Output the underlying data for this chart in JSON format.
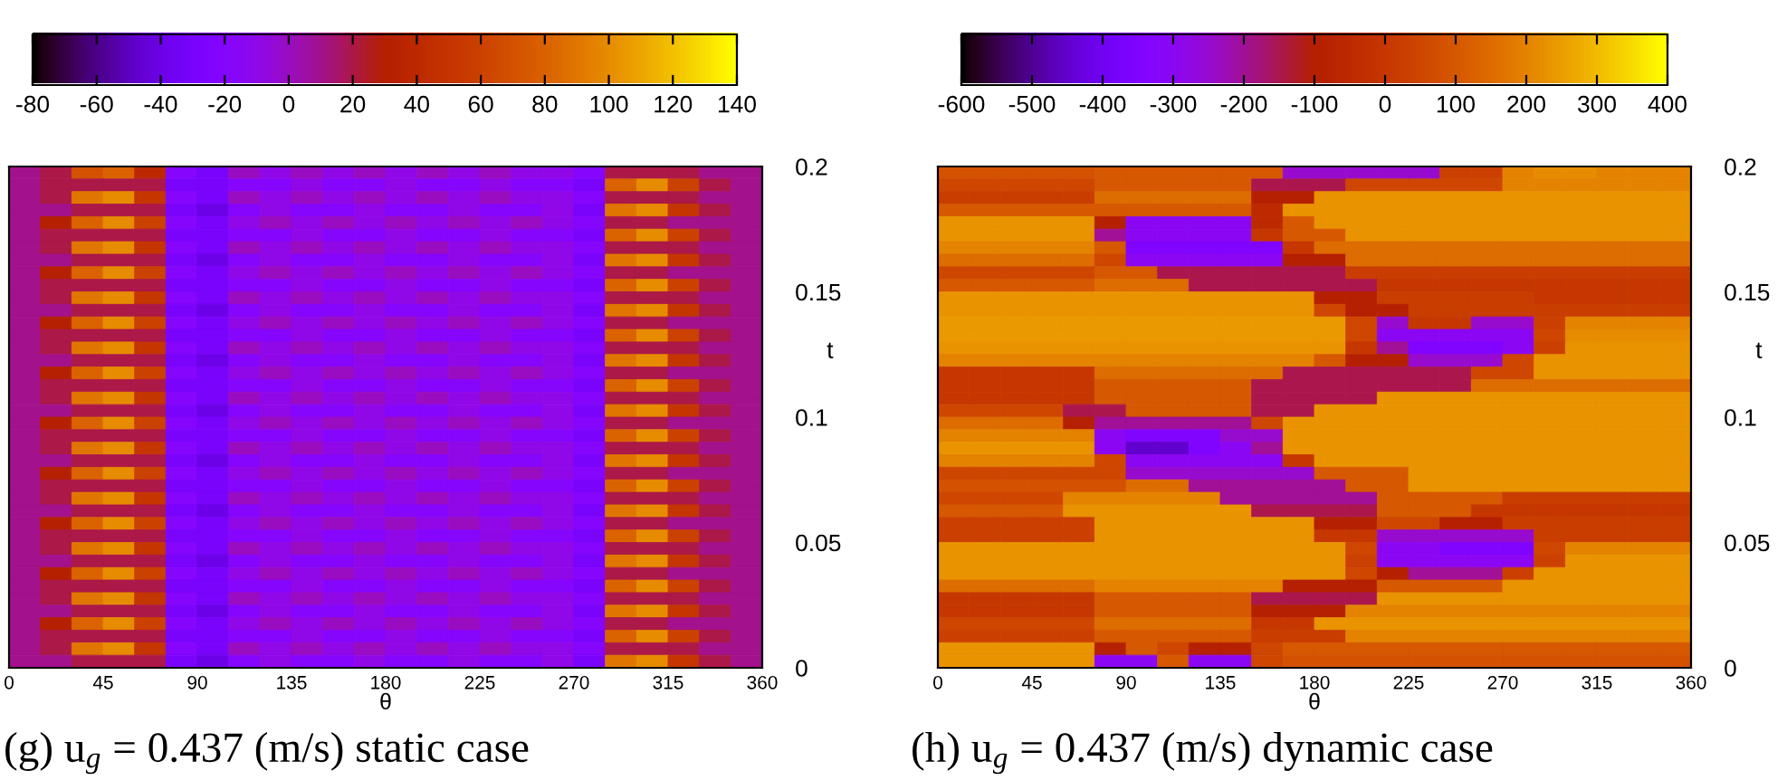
{
  "chart_data": [
    {
      "type": "heatmap",
      "xlabel": "θ",
      "ylabel": "t",
      "x": [
        7.5,
        22.5,
        37.5,
        52.5,
        67.5,
        82.5,
        97.5,
        112.5,
        127.5,
        142.5,
        157.5,
        172.5,
        187.5,
        202.5,
        217.5,
        232.5,
        247.5,
        262.5,
        277.5,
        292.5,
        307.5,
        322.5,
        337.5,
        352.5
      ],
      "xlim": [
        0,
        360
      ],
      "xticks": [
        0,
        45,
        90,
        135,
        180,
        225,
        270,
        315,
        360
      ],
      "ylim": [
        0,
        0.2
      ],
      "yticks": [
        0,
        0.05,
        0.1,
        0.15,
        0.2
      ],
      "clim": [
        -80,
        140
      ],
      "cticks": [
        -80,
        -60,
        -40,
        -20,
        0,
        20,
        40,
        60,
        80,
        100,
        120,
        140
      ],
      "cells": [
        [
          10,
          20,
          70,
          80,
          40,
          -20,
          -30,
          0,
          -10,
          0,
          -10,
          0,
          -10,
          0,
          -10,
          0,
          -10,
          -10,
          -20,
          20,
          20,
          20,
          10,
          10
        ],
        [
          10,
          20,
          20,
          20,
          20,
          -30,
          -30,
          -20,
          -20,
          -10,
          -20,
          -20,
          -10,
          -20,
          -20,
          -10,
          -20,
          -20,
          -30,
          80,
          100,
          60,
          20,
          10
        ],
        [
          10,
          20,
          90,
          100,
          50,
          -20,
          -30,
          0,
          -10,
          0,
          -10,
          0,
          -10,
          0,
          -10,
          0,
          -10,
          -10,
          -20,
          20,
          20,
          20,
          10,
          10
        ],
        [
          10,
          10,
          20,
          20,
          20,
          -30,
          -40,
          -20,
          -10,
          -20,
          -20,
          -10,
          -20,
          -20,
          -10,
          -20,
          -20,
          -10,
          -30,
          90,
          100,
          50,
          20,
          10
        ],
        [
          10,
          30,
          80,
          100,
          60,
          -20,
          -30,
          -10,
          0,
          -10,
          0,
          -10,
          0,
          -10,
          0,
          -10,
          0,
          -10,
          -20,
          20,
          20,
          10,
          10,
          10
        ],
        [
          10,
          20,
          20,
          20,
          20,
          -30,
          -30,
          -20,
          -20,
          -10,
          -20,
          -20,
          -10,
          -20,
          -20,
          -10,
          -20,
          -20,
          -30,
          80,
          100,
          60,
          20,
          10
        ],
        [
          10,
          20,
          90,
          100,
          50,
          -20,
          -30,
          0,
          -10,
          0,
          -10,
          0,
          -10,
          0,
          -10,
          0,
          -10,
          -10,
          -20,
          20,
          20,
          20,
          10,
          10
        ],
        [
          10,
          10,
          20,
          20,
          20,
          -30,
          -40,
          -20,
          -10,
          -20,
          -20,
          -10,
          -20,
          -20,
          -10,
          -20,
          -20,
          -10,
          -30,
          90,
          100,
          50,
          20,
          10
        ],
        [
          10,
          30,
          80,
          100,
          60,
          -20,
          -30,
          -10,
          0,
          -10,
          0,
          -10,
          0,
          -10,
          0,
          -10,
          0,
          -10,
          -20,
          20,
          20,
          10,
          10,
          10
        ],
        [
          10,
          20,
          20,
          20,
          20,
          -30,
          -30,
          -20,
          -20,
          -10,
          -20,
          -20,
          -10,
          -20,
          -20,
          -10,
          -20,
          -20,
          -30,
          80,
          100,
          60,
          20,
          10
        ],
        [
          10,
          20,
          90,
          100,
          50,
          -20,
          -30,
          0,
          -10,
          0,
          -10,
          0,
          -10,
          0,
          -10,
          0,
          -10,
          -10,
          -20,
          20,
          20,
          20,
          10,
          10
        ],
        [
          10,
          10,
          20,
          20,
          20,
          -30,
          -40,
          -20,
          -10,
          -20,
          -20,
          -10,
          -20,
          -20,
          -10,
          -20,
          -20,
          -10,
          -30,
          90,
          100,
          50,
          20,
          10
        ],
        [
          10,
          30,
          80,
          100,
          60,
          -20,
          -30,
          -10,
          0,
          -10,
          0,
          -10,
          0,
          -10,
          0,
          -10,
          0,
          -10,
          -20,
          20,
          20,
          10,
          10,
          10
        ],
        [
          10,
          20,
          20,
          20,
          20,
          -30,
          -30,
          -20,
          -20,
          -10,
          -20,
          -20,
          -10,
          -20,
          -20,
          -10,
          -20,
          -20,
          -30,
          80,
          100,
          60,
          20,
          10
        ],
        [
          10,
          20,
          90,
          100,
          50,
          -20,
          -30,
          0,
          -10,
          0,
          -10,
          0,
          -10,
          0,
          -10,
          0,
          -10,
          -10,
          -20,
          20,
          20,
          20,
          10,
          10
        ],
        [
          10,
          10,
          20,
          20,
          20,
          -30,
          -40,
          -20,
          -10,
          -20,
          -20,
          -10,
          -20,
          -20,
          -10,
          -20,
          -20,
          -10,
          -30,
          90,
          100,
          50,
          20,
          10
        ],
        [
          10,
          30,
          80,
          100,
          60,
          -20,
          -30,
          -10,
          0,
          -10,
          0,
          -10,
          0,
          -10,
          0,
          -10,
          0,
          -10,
          -20,
          20,
          20,
          10,
          10,
          10
        ],
        [
          10,
          20,
          20,
          20,
          20,
          -30,
          -30,
          -20,
          -20,
          -10,
          -20,
          -20,
          -10,
          -20,
          -20,
          -10,
          -20,
          -20,
          -30,
          80,
          100,
          60,
          20,
          10
        ],
        [
          10,
          20,
          90,
          100,
          50,
          -20,
          -30,
          0,
          -10,
          0,
          -10,
          0,
          -10,
          0,
          -10,
          0,
          -10,
          -10,
          -20,
          20,
          20,
          20,
          10,
          10
        ],
        [
          10,
          10,
          20,
          20,
          20,
          -30,
          -40,
          -20,
          -10,
          -20,
          -20,
          -10,
          -20,
          -20,
          -10,
          -20,
          -20,
          -10,
          -30,
          90,
          100,
          50,
          20,
          10
        ],
        [
          10,
          30,
          80,
          100,
          60,
          -20,
          -30,
          -10,
          0,
          -10,
          0,
          -10,
          0,
          -10,
          0,
          -10,
          0,
          -10,
          -20,
          20,
          20,
          10,
          10,
          10
        ],
        [
          10,
          20,
          20,
          20,
          20,
          -30,
          -30,
          -20,
          -20,
          -10,
          -20,
          -20,
          -10,
          -20,
          -20,
          -10,
          -20,
          -20,
          -30,
          80,
          100,
          60,
          20,
          10
        ],
        [
          10,
          20,
          90,
          100,
          50,
          -20,
          -30,
          0,
          -10,
          0,
          -10,
          0,
          -10,
          0,
          -10,
          0,
          -10,
          -10,
          -20,
          20,
          20,
          20,
          10,
          10
        ],
        [
          10,
          10,
          20,
          20,
          20,
          -30,
          -40,
          -20,
          -10,
          -20,
          -20,
          -10,
          -20,
          -20,
          -10,
          -20,
          -20,
          -10,
          -30,
          90,
          100,
          50,
          20,
          10
        ],
        [
          10,
          30,
          80,
          100,
          60,
          -20,
          -30,
          -10,
          0,
          -10,
          0,
          -10,
          0,
          -10,
          0,
          -10,
          0,
          -10,
          -20,
          20,
          20,
          10,
          10,
          10
        ],
        [
          10,
          20,
          20,
          20,
          20,
          -30,
          -30,
          -20,
          -20,
          -10,
          -20,
          -20,
          -10,
          -20,
          -20,
          -10,
          -20,
          -20,
          -30,
          80,
          100,
          60,
          20,
          10
        ],
        [
          10,
          20,
          90,
          100,
          50,
          -20,
          -30,
          0,
          -10,
          0,
          -10,
          0,
          -10,
          0,
          -10,
          0,
          -10,
          -10,
          -20,
          20,
          20,
          20,
          10,
          10
        ],
        [
          10,
          10,
          20,
          20,
          20,
          -30,
          -40,
          -20,
          -10,
          -20,
          -20,
          -10,
          -20,
          -20,
          -10,
          -20,
          -20,
          -10,
          -30,
          90,
          100,
          50,
          20,
          10
        ],
        [
          10,
          30,
          80,
          100,
          60,
          -20,
          -30,
          -10,
          0,
          -10,
          0,
          -10,
          0,
          -10,
          0,
          -10,
          0,
          -10,
          -20,
          20,
          20,
          10,
          10,
          10
        ],
        [
          10,
          20,
          20,
          20,
          20,
          -30,
          -30,
          -20,
          -20,
          -10,
          -20,
          -20,
          -10,
          -20,
          -20,
          -10,
          -20,
          -20,
          -30,
          80,
          100,
          60,
          20,
          10
        ],
        [
          10,
          20,
          90,
          100,
          50,
          -20,
          -30,
          0,
          -10,
          0,
          -10,
          0,
          -10,
          0,
          -10,
          0,
          -10,
          -10,
          -20,
          20,
          20,
          20,
          10,
          10
        ],
        [
          10,
          10,
          20,
          20,
          20,
          -30,
          -40,
          -20,
          -10,
          -20,
          -20,
          -10,
          -20,
          -20,
          -10,
          -20,
          -20,
          -10,
          -30,
          90,
          100,
          50,
          20,
          10
        ],
        [
          10,
          30,
          80,
          100,
          60,
          -20,
          -30,
          -10,
          0,
          -10,
          0,
          -10,
          0,
          -10,
          0,
          -10,
          0,
          -10,
          -20,
          20,
          20,
          10,
          10,
          10
        ],
        [
          10,
          20,
          20,
          20,
          20,
          -30,
          -30,
          -20,
          -20,
          -10,
          -20,
          -20,
          -10,
          -20,
          -20,
          -10,
          -20,
          -20,
          -30,
          80,
          100,
          60,
          20,
          10
        ],
        [
          10,
          20,
          90,
          100,
          50,
          -20,
          -30,
          0,
          -10,
          0,
          -10,
          0,
          -10,
          0,
          -10,
          0,
          -10,
          -10,
          -20,
          20,
          20,
          20,
          10,
          10
        ],
        [
          10,
          10,
          20,
          20,
          20,
          -30,
          -40,
          -20,
          -10,
          -20,
          -20,
          -10,
          -20,
          -20,
          -10,
          -20,
          -20,
          -10,
          -30,
          90,
          100,
          50,
          20,
          10
        ],
        [
          10,
          30,
          80,
          100,
          60,
          -20,
          -30,
          -10,
          0,
          -10,
          0,
          -10,
          0,
          -10,
          0,
          -10,
          0,
          -10,
          -20,
          20,
          20,
          10,
          10,
          10
        ],
        [
          10,
          20,
          20,
          20,
          20,
          -30,
          -30,
          -20,
          -20,
          -10,
          -20,
          -20,
          -10,
          -20,
          -20,
          -10,
          -20,
          -20,
          -30,
          80,
          100,
          60,
          20,
          10
        ],
        [
          10,
          20,
          90,
          100,
          50,
          -20,
          -30,
          0,
          -10,
          0,
          -10,
          0,
          -10,
          0,
          -10,
          0,
          -10,
          -10,
          -20,
          20,
          20,
          20,
          10,
          10
        ],
        [
          10,
          10,
          20,
          20,
          20,
          -30,
          -40,
          -20,
          -10,
          -20,
          -20,
          -10,
          -20,
          -20,
          -10,
          -20,
          -20,
          -10,
          -30,
          90,
          100,
          50,
          20,
          10
        ]
      ],
      "annotations": [
        "(g) u$_{g}$ = 0.437 (m/s) static case"
      ]
    },
    {
      "type": "heatmap",
      "xlabel": "θ",
      "ylabel": "t",
      "x": [
        7.5,
        22.5,
        37.5,
        52.5,
        67.5,
        82.5,
        97.5,
        112.5,
        127.5,
        142.5,
        157.5,
        172.5,
        187.5,
        202.5,
        217.5,
        232.5,
        247.5,
        262.5,
        277.5,
        292.5,
        307.5,
        322.5,
        337.5,
        352.5
      ],
      "xlim": [
        0,
        360
      ],
      "xticks": [
        0,
        45,
        90,
        135,
        180,
        225,
        270,
        315,
        360
      ],
      "ylim": [
        0,
        0.2
      ],
      "yticks": [
        0,
        0.05,
        0.1,
        0.15,
        0.2
      ],
      "clim": [
        -600,
        400
      ],
      "cticks": [
        -600,
        -500,
        -400,
        -300,
        -200,
        -100,
        0,
        100,
        200,
        300,
        400
      ],
      "cells": [
        [
          80,
          80,
          80,
          80,
          80,
          100,
          100,
          100,
          100,
          100,
          100,
          -250,
          -250,
          -250,
          -250,
          -250,
          30,
          30,
          200,
          220,
          220,
          200,
          200,
          200
        ],
        [
          50,
          50,
          50,
          50,
          50,
          100,
          100,
          100,
          100,
          100,
          -150,
          -150,
          -150,
          50,
          50,
          50,
          50,
          50,
          200,
          200,
          200,
          200,
          200,
          200
        ],
        [
          20,
          20,
          20,
          20,
          20,
          150,
          150,
          150,
          150,
          150,
          -100,
          -100,
          230,
          230,
          230,
          230,
          230,
          230,
          230,
          230,
          230,
          230,
          230,
          230
        ],
        [
          100,
          100,
          100,
          100,
          100,
          100,
          100,
          100,
          100,
          100,
          -50,
          230,
          230,
          230,
          230,
          230,
          230,
          230,
          230,
          230,
          230,
          230,
          230,
          230
        ],
        [
          230,
          230,
          230,
          230,
          230,
          -100,
          -300,
          -300,
          -300,
          -300,
          -50,
          100,
          230,
          230,
          230,
          230,
          230,
          230,
          230,
          230,
          230,
          230,
          230,
          230
        ],
        [
          230,
          230,
          230,
          230,
          230,
          -200,
          -300,
          -300,
          -300,
          -300,
          0,
          100,
          100,
          230,
          230,
          230,
          230,
          230,
          230,
          230,
          230,
          230,
          230,
          230
        ],
        [
          200,
          200,
          200,
          200,
          200,
          100,
          -350,
          -350,
          -350,
          -350,
          -350,
          0,
          150,
          150,
          150,
          150,
          150,
          150,
          150,
          150,
          150,
          150,
          150,
          150
        ],
        [
          150,
          150,
          150,
          150,
          150,
          50,
          -300,
          -300,
          -300,
          -300,
          -300,
          -100,
          -100,
          150,
          150,
          150,
          150,
          150,
          150,
          150,
          150,
          150,
          150,
          150
        ],
        [
          50,
          50,
          50,
          50,
          50,
          100,
          100,
          -150,
          -150,
          -150,
          -150,
          -150,
          -150,
          20,
          20,
          20,
          20,
          20,
          20,
          20,
          20,
          20,
          20,
          20
        ],
        [
          100,
          100,
          100,
          100,
          100,
          150,
          150,
          150,
          -150,
          -150,
          -150,
          -150,
          -150,
          -150,
          0,
          0,
          0,
          0,
          0,
          0,
          0,
          0,
          0,
          0
        ],
        [
          230,
          230,
          230,
          230,
          230,
          230,
          230,
          230,
          230,
          230,
          230,
          230,
          -100,
          -100,
          20,
          20,
          20,
          20,
          20,
          0,
          0,
          0,
          0,
          0
        ],
        [
          230,
          230,
          230,
          230,
          230,
          230,
          230,
          230,
          230,
          230,
          230,
          230,
          50,
          -100,
          -100,
          20,
          20,
          20,
          20,
          20,
          20,
          20,
          20,
          20
        ],
        [
          240,
          240,
          240,
          240,
          240,
          240,
          240,
          240,
          240,
          240,
          240,
          240,
          240,
          50,
          -250,
          0,
          0,
          -250,
          -250,
          30,
          200,
          200,
          200,
          200
        ],
        [
          240,
          240,
          240,
          240,
          240,
          240,
          240,
          240,
          240,
          240,
          240,
          240,
          240,
          50,
          -300,
          -300,
          -300,
          -300,
          -300,
          50,
          220,
          220,
          220,
          220
        ],
        [
          230,
          230,
          230,
          230,
          230,
          230,
          230,
          230,
          230,
          230,
          230,
          230,
          230,
          0,
          -200,
          -350,
          -350,
          -350,
          -300,
          30,
          230,
          230,
          230,
          230
        ],
        [
          200,
          200,
          200,
          200,
          200,
          200,
          200,
          200,
          200,
          200,
          200,
          200,
          100,
          -100,
          -100,
          -250,
          -250,
          -250,
          50,
          230,
          230,
          230,
          230,
          230
        ],
        [
          0,
          0,
          0,
          0,
          0,
          150,
          150,
          150,
          150,
          150,
          150,
          -150,
          -150,
          -150,
          -150,
          -150,
          -150,
          50,
          50,
          230,
          230,
          230,
          230,
          230
        ],
        [
          0,
          0,
          0,
          0,
          0,
          100,
          100,
          100,
          100,
          100,
          -150,
          -150,
          -150,
          -150,
          -150,
          -150,
          -150,
          150,
          150,
          150,
          150,
          150,
          150,
          150
        ],
        [
          0,
          0,
          0,
          0,
          0,
          100,
          100,
          100,
          100,
          100,
          -150,
          -150,
          -150,
          -150,
          230,
          230,
          230,
          230,
          230,
          230,
          230,
          230,
          230,
          230
        ],
        [
          50,
          50,
          50,
          50,
          -150,
          -150,
          100,
          100,
          100,
          100,
          -150,
          -150,
          230,
          230,
          230,
          230,
          230,
          230,
          230,
          230,
          230,
          230,
          230,
          230
        ],
        [
          150,
          150,
          150,
          150,
          -100,
          -200,
          -200,
          -200,
          -200,
          -200,
          50,
          230,
          230,
          230,
          230,
          230,
          230,
          230,
          230,
          230,
          230,
          230,
          230,
          230
        ],
        [
          200,
          200,
          200,
          200,
          200,
          -300,
          -350,
          -350,
          -350,
          -250,
          -250,
          230,
          230,
          230,
          230,
          230,
          230,
          230,
          230,
          230,
          230,
          230,
          230,
          230
        ],
        [
          230,
          230,
          230,
          230,
          230,
          -300,
          -450,
          -450,
          -350,
          -300,
          -200,
          230,
          230,
          230,
          230,
          230,
          230,
          230,
          230,
          230,
          230,
          230,
          230,
          230
        ],
        [
          200,
          200,
          200,
          200,
          200,
          50,
          -300,
          -300,
          -300,
          -300,
          -300,
          0,
          230,
          230,
          230,
          230,
          230,
          230,
          230,
          230,
          230,
          230,
          230,
          230
        ],
        [
          50,
          50,
          50,
          50,
          50,
          50,
          -250,
          -250,
          -250,
          -250,
          -250,
          -250,
          100,
          100,
          100,
          230,
          230,
          230,
          230,
          230,
          230,
          230,
          230,
          230
        ],
        [
          80,
          80,
          80,
          80,
          80,
          80,
          150,
          150,
          -200,
          -200,
          -200,
          -200,
          -200,
          100,
          100,
          230,
          230,
          230,
          230,
          230,
          230,
          230,
          230,
          230
        ],
        [
          50,
          50,
          50,
          50,
          200,
          200,
          200,
          200,
          200,
          -200,
          -200,
          -200,
          -200,
          -200,
          100,
          100,
          100,
          100,
          20,
          20,
          20,
          20,
          20,
          20
        ],
        [
          100,
          100,
          100,
          100,
          230,
          230,
          230,
          230,
          230,
          230,
          -150,
          -150,
          -150,
          -150,
          100,
          100,
          100,
          0,
          0,
          0,
          0,
          0,
          0,
          0
        ],
        [
          30,
          30,
          30,
          30,
          30,
          230,
          230,
          230,
          230,
          230,
          230,
          230,
          -100,
          -100,
          50,
          50,
          -100,
          -100,
          20,
          20,
          20,
          20,
          20,
          20
        ],
        [
          30,
          30,
          30,
          30,
          30,
          230,
          230,
          230,
          230,
          230,
          230,
          230,
          0,
          0,
          -250,
          -250,
          -250,
          -250,
          -250,
          20,
          20,
          20,
          20,
          20
        ],
        [
          230,
          230,
          230,
          230,
          230,
          230,
          230,
          230,
          230,
          230,
          230,
          230,
          230,
          50,
          -300,
          -300,
          -350,
          -350,
          -350,
          50,
          200,
          200,
          200,
          200
        ],
        [
          230,
          230,
          230,
          230,
          230,
          230,
          230,
          230,
          230,
          230,
          230,
          230,
          230,
          30,
          -300,
          -300,
          -300,
          -300,
          -300,
          30,
          230,
          230,
          230,
          230
        ],
        [
          230,
          230,
          230,
          230,
          230,
          230,
          230,
          230,
          230,
          230,
          230,
          230,
          230,
          50,
          -100,
          -200,
          -200,
          -200,
          30,
          230,
          230,
          230,
          230,
          230
        ],
        [
          150,
          150,
          150,
          150,
          150,
          200,
          200,
          200,
          200,
          200,
          200,
          -100,
          -100,
          -100,
          100,
          100,
          100,
          100,
          230,
          230,
          230,
          230,
          230,
          230
        ],
        [
          0,
          0,
          0,
          0,
          0,
          100,
          100,
          100,
          100,
          100,
          -150,
          -150,
          -150,
          -150,
          230,
          230,
          230,
          230,
          230,
          230,
          230,
          230,
          230,
          230
        ],
        [
          0,
          0,
          0,
          0,
          0,
          100,
          100,
          100,
          100,
          100,
          -100,
          -100,
          -100,
          200,
          200,
          200,
          200,
          200,
          200,
          200,
          200,
          200,
          200,
          200
        ],
        [
          50,
          50,
          50,
          50,
          50,
          150,
          150,
          150,
          150,
          150,
          0,
          0,
          230,
          230,
          230,
          230,
          230,
          230,
          230,
          230,
          230,
          230,
          230,
          230
        ],
        [
          30,
          30,
          30,
          30,
          30,
          100,
          100,
          100,
          100,
          100,
          20,
          20,
          20,
          200,
          200,
          200,
          200,
          200,
          200,
          200,
          200,
          200,
          200,
          200
        ],
        [
          230,
          230,
          230,
          230,
          230,
          -100,
          100,
          50,
          -100,
          -100,
          50,
          100,
          100,
          100,
          100,
          100,
          100,
          100,
          100,
          100,
          100,
          100,
          100,
          100
        ],
        [
          230,
          230,
          230,
          230,
          230,
          -300,
          -300,
          100,
          -300,
          -300,
          50,
          80,
          80,
          80,
          80,
          80,
          80,
          80,
          80,
          80,
          80,
          80,
          80,
          80
        ]
      ],
      "annotations": [
        "(h) u$_{g}$ = 0.437 (m/s) dynamic case"
      ]
    }
  ]
}
